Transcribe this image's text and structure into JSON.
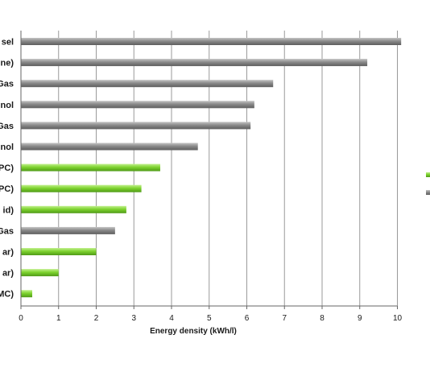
{
  "chart_data": {
    "type": "bar",
    "orientation": "horizontal",
    "categories": [
      "sel",
      "ne)",
      "Gas",
      "nol",
      "Gas",
      "nol",
      "PC)",
      "PC)",
      "id)",
      "Gas",
      "ar)",
      "ar)",
      "MC)"
    ],
    "values": [
      10.1,
      9.2,
      6.7,
      6.2,
      6.1,
      4.7,
      3.7,
      3.2,
      2.8,
      2.5,
      2.0,
      1.0,
      0.3
    ],
    "bar_colors": [
      "#8a8a8a",
      "#8a8a8a",
      "#8a8a8a",
      "#8a8a8a",
      "#8a8a8a",
      "#8a8a8a",
      "#7ed32f",
      "#7ed32f",
      "#7ed32f",
      "#8a8a8a",
      "#7ed32f",
      "#7ed32f",
      "#7ed32f"
    ],
    "xlabel": "Energy density (kWh/l)",
    "xlim": [
      0,
      10
    ],
    "xticks": [
      "0",
      "1",
      "2",
      "3",
      "4",
      "5",
      "6",
      "7",
      "8",
      "9",
      "10"
    ],
    "grid": true,
    "legend_placement": "right (cropped)",
    "legend_colors": [
      "#7ed32f",
      "#8a8a8a"
    ]
  },
  "colors": {
    "grey": "#8a8a8a",
    "green": "#7ed32f",
    "grid": "#9a9a9a"
  }
}
